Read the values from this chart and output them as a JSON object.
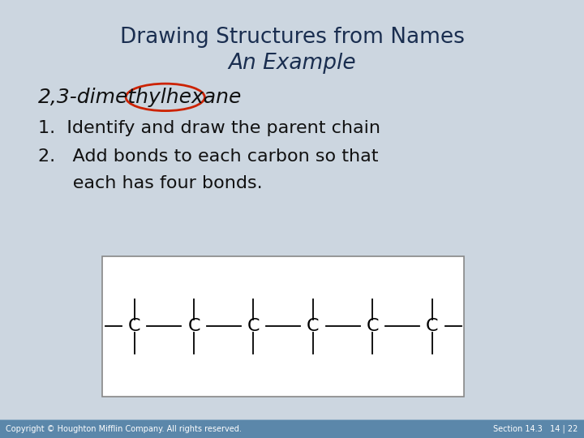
{
  "title_line1": "Drawing Structures from Names",
  "title_line2": "An Example",
  "bg_color": "#ccd6e0",
  "title_color": "#1a2e50",
  "text_color": "#111111",
  "footer_bg": "#5b87aa",
  "footer_text_left": "Copyright © Houghton Mifflin Company. All rights reserved.",
  "footer_text_right": "Section 14.3   14 | 22",
  "footer_text_color": "#ffffff",
  "compound_name_pre": "2,3-dimethyl",
  "compound_name_circle": "hexane",
  "step1": "1.  Identify and draw the parent chain",
  "step2_line1": "2.   Add bonds to each carbon so that",
  "step2_line2": "      each has four bonds.",
  "box_bg": "#ffffff",
  "box_border": "#888888",
  "num_carbons": 6,
  "title_fontsize": 19,
  "subtitle_fontsize": 19,
  "body_fontsize": 16,
  "compound_fontsize": 18,
  "carbon_fontsize": 16
}
